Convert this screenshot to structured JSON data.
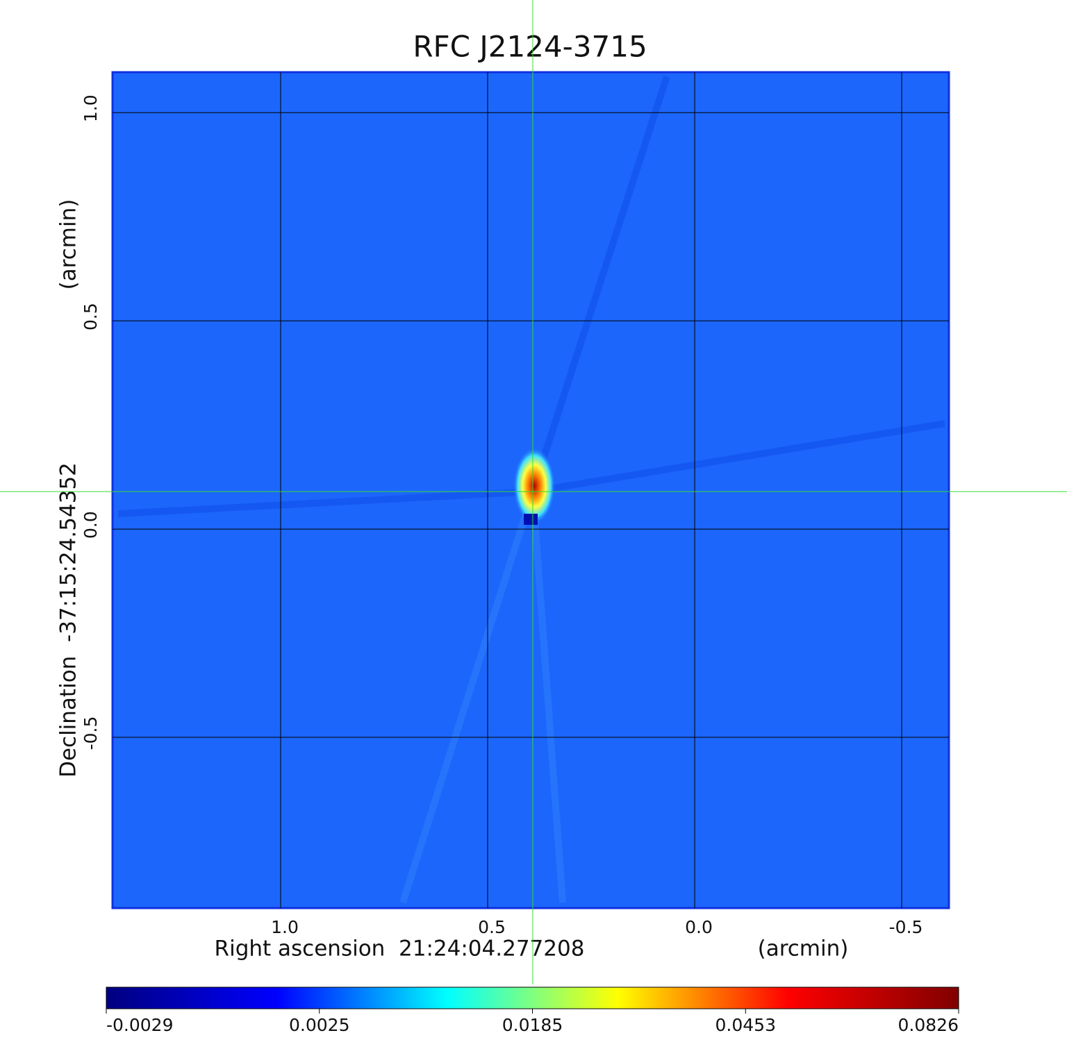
{
  "chart_data": {
    "type": "image",
    "title": "RFC J2124-3715",
    "title_color": "#0a14d2",
    "xlabel": "Right ascension  21:24:04.277208",
    "xunit": "(arcmin)",
    "ylabel": "Declination  -37:15:24.54352",
    "yunit": "(arcmin)",
    "xlim": [
      1.406,
      -0.614
    ],
    "ylim": [
      -0.91,
      1.097
    ],
    "xticks": [
      {
        "value": 1,
        "label": "1.0"
      },
      {
        "value": 0.5,
        "label": "0.5"
      },
      {
        "value": 0,
        "label": "0.0"
      },
      -0.5
    ],
    "yticks": [
      {
        "value": 1,
        "label": "1.0"
      },
      {
        "value": 0.5,
        "label": "0.5"
      },
      {
        "value": 0,
        "label": "0.0"
      },
      -0.5
    ],
    "grid": true,
    "crosshair": {
      "x": 0.391,
      "y": 0.09,
      "color": "#33dd33"
    },
    "colorbar": {
      "ticks": [
        -0.0029,
        0.0025,
        0.0185,
        0.0453,
        0.0826
      ],
      "colors": [
        "#000080",
        "#0000ff",
        "#00ffff",
        "#ffff00",
        "#ff0000",
        "#800000"
      ]
    }
  }
}
